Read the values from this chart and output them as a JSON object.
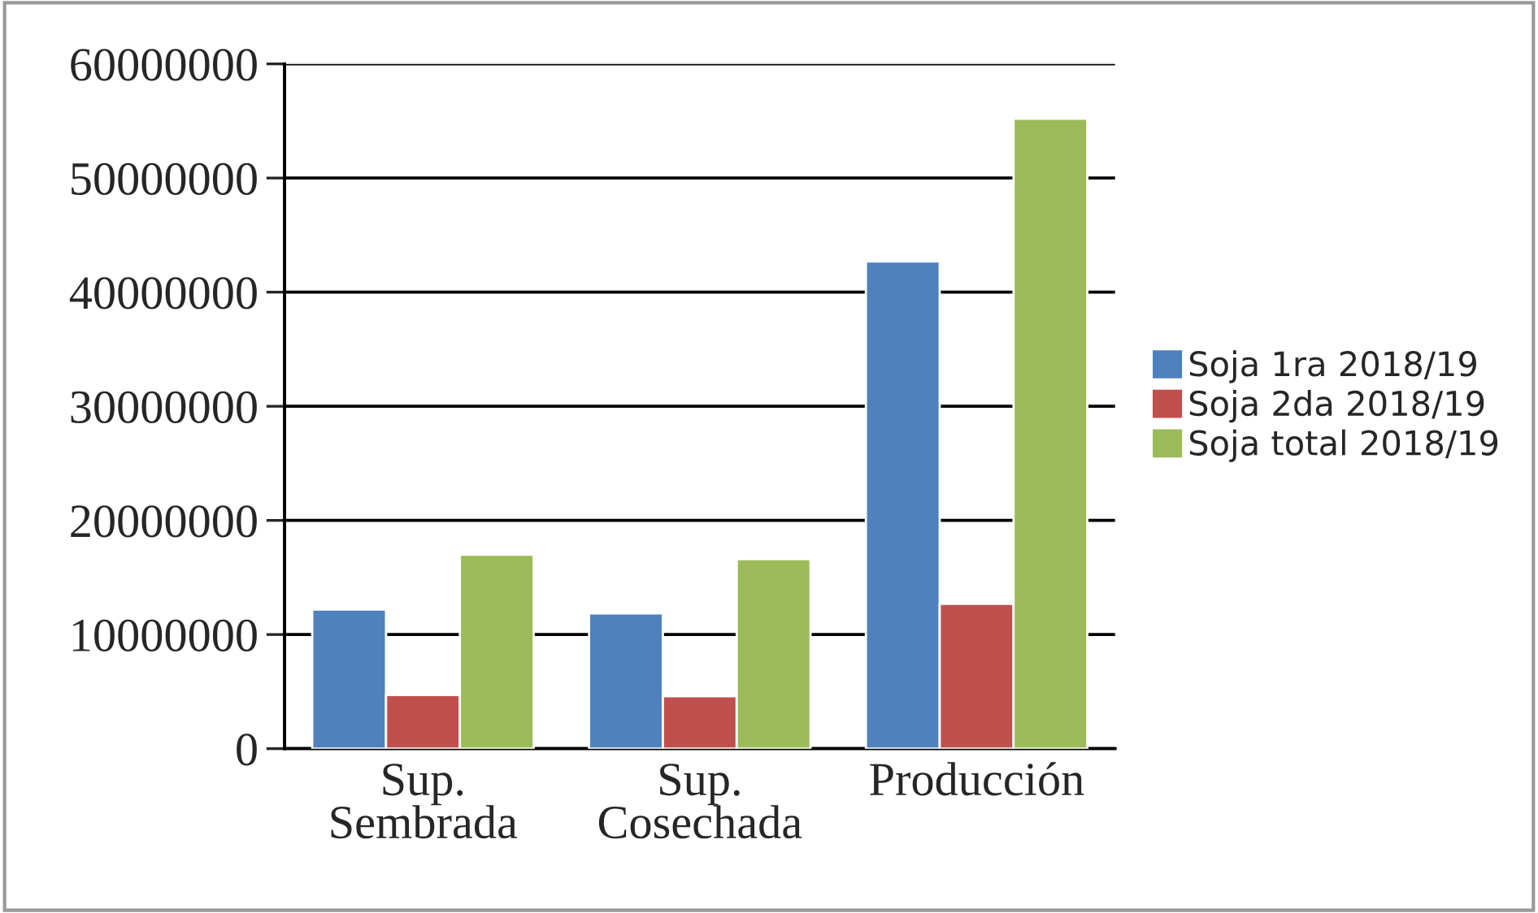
{
  "chart_data": {
    "type": "bar",
    "categories": [
      "Sup.\nSembrada",
      "Sup.\nCosechada",
      "Producción"
    ],
    "series": [
      {
        "name": "Soja 1ra 2018/19",
        "color": "#4f81bd",
        "values": [
          12200000,
          11850000,
          42700000
        ]
      },
      {
        "name": "Soja 2da 2018/19",
        "color": "#c0504d",
        "values": [
          4700000,
          4600000,
          12700000
        ]
      },
      {
        "name": "Soja total 2018/19",
        "color": "#9bbb59",
        "values": [
          17000000,
          16600000,
          55200000
        ]
      }
    ],
    "ylim": [
      0,
      60000000
    ],
    "yticks": [
      0,
      10000000,
      20000000,
      30000000,
      40000000,
      50000000,
      60000000
    ],
    "grid": "y",
    "legend": "right"
  }
}
